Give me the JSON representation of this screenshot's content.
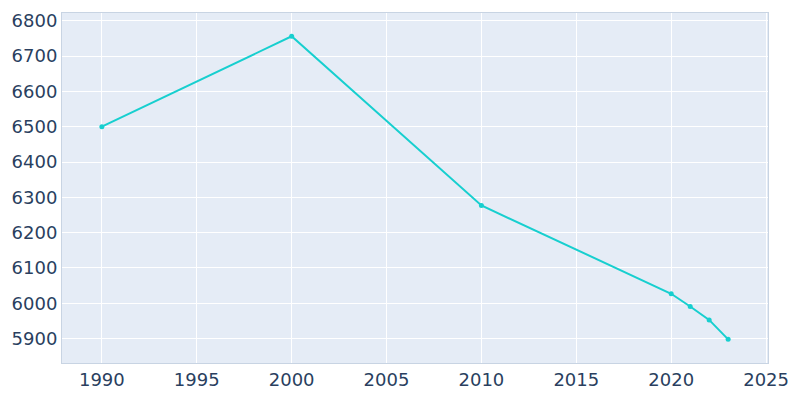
{
  "chart_data": {
    "type": "line",
    "x": [
      1990,
      2000,
      2010,
      2020,
      2021,
      2022,
      2023
    ],
    "values": [
      6500,
      6756,
      6277,
      6027,
      5991,
      5953,
      5898
    ],
    "color": "#17cfcf",
    "marker": "circle",
    "xlim": [
      1987.9,
      2025.1
    ],
    "xticks": [
      1990,
      1995,
      2000,
      2005,
      2010,
      2015,
      2020,
      2025
    ],
    "ylim": [
      5831,
      6822
    ],
    "yticks": [
      5900,
      6000,
      6100,
      6200,
      6300,
      6400,
      6500,
      6600,
      6700,
      6800
    ],
    "grid": true
  }
}
